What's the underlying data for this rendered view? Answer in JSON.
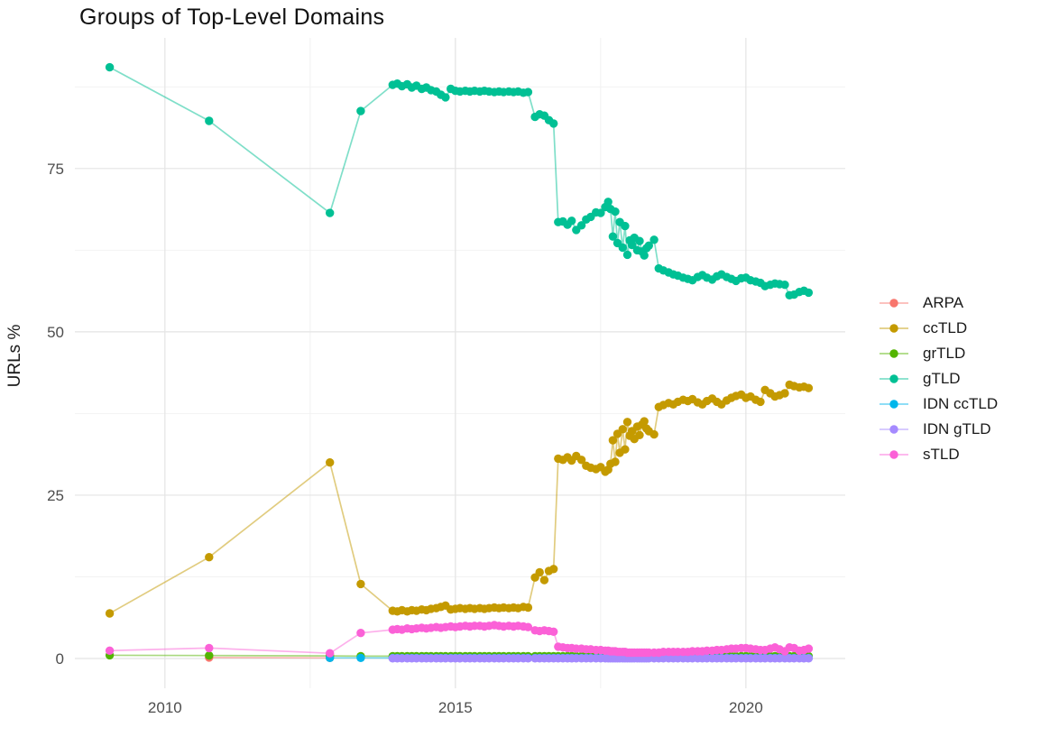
{
  "chart": {
    "title": "Groups of Top-Level Domains"
  },
  "chart_data": {
    "type": "line",
    "title": "Groups of Top-Level Domains",
    "xlabel": "",
    "ylabel": "URLs %",
    "x_ticks": [
      2010,
      2015,
      2020
    ],
    "y_ticks": [
      0,
      25,
      50,
      75
    ],
    "x_minor_ticks": [
      2012.5,
      2017.5
    ],
    "y_minor_ticks": [
      12.5,
      37.5,
      62.5,
      87.5
    ],
    "xlim": [
      2008.45,
      2021.71
    ],
    "ylim": [
      -4.56,
      95.0
    ],
    "grid": true,
    "legend_position": "right",
    "x_dense": [
      2013.92,
      2014.0,
      2014.08,
      2014.17,
      2014.25,
      2014.33,
      2014.42,
      2014.5,
      2014.58,
      2014.67,
      2014.75,
      2014.83,
      2014.92,
      2015.0,
      2015.08,
      2015.17,
      2015.25,
      2015.33,
      2015.42,
      2015.5,
      2015.58,
      2015.67,
      2015.75,
      2015.83,
      2015.92,
      2016.0,
      2016.08,
      2016.17,
      2016.25,
      2016.37,
      2016.45,
      2016.53,
      2016.61,
      2016.69,
      2016.77,
      2016.85,
      2016.93,
      2017.0,
      2017.08,
      2017.17,
      2017.25,
      2017.33,
      2017.42,
      2017.5,
      2017.58,
      2017.63,
      2017.67,
      2017.71,
      2017.75,
      2017.79,
      2017.83,
      2017.88,
      2017.92,
      2017.96,
      2018.0,
      2018.04,
      2018.08,
      2018.13,
      2018.17,
      2018.21,
      2018.25,
      2018.29,
      2018.33,
      2018.42,
      2018.5,
      2018.58,
      2018.67,
      2018.75,
      2018.83,
      2018.92,
      2019.0,
      2019.08,
      2019.17,
      2019.25,
      2019.33,
      2019.42,
      2019.5,
      2019.58,
      2019.67,
      2019.75,
      2019.83,
      2019.92,
      2020.0,
      2020.08,
      2020.17,
      2020.25,
      2020.33,
      2020.42,
      2020.5,
      2020.58,
      2020.67,
      2020.75,
      2020.83,
      2020.92,
      2021.0,
      2021.08
    ],
    "series": [
      {
        "name": "ARPA",
        "color": "#F8766D",
        "dense": false,
        "x_head": [
          2010.76,
          2012.84
        ],
        "y_head": [
          0.15,
          0.1
        ]
      },
      {
        "name": "ccTLD",
        "color": "#C49A00",
        "dense": true,
        "x_head": [
          2009.05,
          2010.76,
          2012.84,
          2013.37
        ],
        "y_head": [
          6.9,
          15.5,
          30.0,
          11.4
        ],
        "y_dense": [
          7.3,
          7.2,
          7.4,
          7.2,
          7.4,
          7.3,
          7.5,
          7.4,
          7.6,
          7.7,
          7.9,
          8.1,
          7.5,
          7.6,
          7.7,
          7.6,
          7.7,
          7.6,
          7.7,
          7.6,
          7.7,
          7.8,
          7.7,
          7.8,
          7.7,
          7.8,
          7.7,
          7.9,
          7.8,
          12.4,
          13.2,
          12.0,
          13.4,
          13.7,
          30.6,
          30.4,
          30.8,
          30.3,
          31.0,
          30.4,
          29.5,
          29.2,
          29.0,
          29.3,
          28.6,
          28.9,
          29.8,
          33.4,
          30.1,
          34.4,
          31.5,
          35.1,
          32.0,
          36.2,
          34.1,
          34.8,
          33.6,
          35.5,
          34.2,
          35.8,
          36.3,
          35.2,
          34.8,
          34.3,
          38.5,
          38.8,
          39.1,
          38.9,
          39.3,
          39.6,
          39.4,
          39.7,
          39.2,
          38.9,
          39.4,
          39.8,
          39.3,
          38.9,
          39.5,
          39.9,
          40.2,
          40.4,
          39.9,
          40.1,
          39.6,
          39.3,
          41.1,
          40.6,
          40.1,
          40.3,
          40.6,
          41.9,
          41.7,
          41.5,
          41.6,
          41.4
        ]
      },
      {
        "name": "grTLD",
        "color": "#53B400",
        "dense": true,
        "x_head": [
          2009.05,
          2010.76,
          2012.84,
          2013.37
        ],
        "y_head": [
          0.5,
          0.45,
          0.4,
          0.35
        ],
        "y_dense_fill": 0.35
      },
      {
        "name": "gTLD",
        "color": "#00C094",
        "dense": true,
        "x_head": [
          2009.05,
          2010.76,
          2012.84,
          2013.37
        ],
        "y_head": [
          90.5,
          82.3,
          68.2,
          83.8
        ],
        "y_dense": [
          87.8,
          88.0,
          87.6,
          87.9,
          87.4,
          87.7,
          87.2,
          87.4,
          87.0,
          86.8,
          86.3,
          85.9,
          87.2,
          86.9,
          86.8,
          86.9,
          86.8,
          86.9,
          86.8,
          86.9,
          86.8,
          86.7,
          86.8,
          86.7,
          86.8,
          86.7,
          86.8,
          86.6,
          86.7,
          82.9,
          83.3,
          83.1,
          82.4,
          81.9,
          66.8,
          66.9,
          66.4,
          67.0,
          65.6,
          66.3,
          67.2,
          67.6,
          68.3,
          68.2,
          69.1,
          69.9,
          68.8,
          64.6,
          68.4,
          63.6,
          66.8,
          62.9,
          66.2,
          61.8,
          64.0,
          63.3,
          64.4,
          62.5,
          63.9,
          62.3,
          61.7,
          62.8,
          63.2,
          64.1,
          59.7,
          59.4,
          59.1,
          58.8,
          58.6,
          58.3,
          58.1,
          57.9,
          58.4,
          58.7,
          58.3,
          58.0,
          58.5,
          58.8,
          58.4,
          58.1,
          57.8,
          58.2,
          58.3,
          57.9,
          57.7,
          57.5,
          57.0,
          57.2,
          57.4,
          57.3,
          57.2,
          55.6,
          55.7,
          56.1,
          56.3,
          56.0
        ]
      },
      {
        "name": "IDN ccTLD",
        "color": "#00B6EB",
        "dense": true,
        "x_head": [
          2012.84,
          2013.37
        ],
        "y_head": [
          0.1,
          0.1
        ],
        "y_dense_fill": 0.08
      },
      {
        "name": "IDN gTLD",
        "color": "#A58AFF",
        "dense": true,
        "x_head": [],
        "y_head": [],
        "y_dense_fill": 0.02
      },
      {
        "name": "sTLD",
        "color": "#FB61D7",
        "dense": true,
        "x_head": [
          2009.05,
          2010.76,
          2012.84,
          2013.37
        ],
        "y_head": [
          1.2,
          1.6,
          0.8,
          3.9
        ],
        "y_dense": [
          4.4,
          4.5,
          4.4,
          4.6,
          4.5,
          4.6,
          4.7,
          4.6,
          4.7,
          4.8,
          4.7,
          4.8,
          4.9,
          4.8,
          4.9,
          5.0,
          4.9,
          5.0,
          5.0,
          4.9,
          5.0,
          5.1,
          5.0,
          4.9,
          5.0,
          4.9,
          5.0,
          4.9,
          4.8,
          4.3,
          4.2,
          4.3,
          4.2,
          4.1,
          1.8,
          1.7,
          1.6,
          1.6,
          1.5,
          1.5,
          1.4,
          1.4,
          1.3,
          1.3,
          1.2,
          1.2,
          1.1,
          1.1,
          1.1,
          1.0,
          1.0,
          1.0,
          1.0,
          0.9,
          0.9,
          0.9,
          0.9,
          0.9,
          0.9,
          0.9,
          0.9,
          0.9,
          0.9,
          0.9,
          0.9,
          1.0,
          1.0,
          1.0,
          1.0,
          1.0,
          1.0,
          1.1,
          1.1,
          1.1,
          1.2,
          1.2,
          1.3,
          1.3,
          1.4,
          1.5,
          1.5,
          1.6,
          1.6,
          1.5,
          1.4,
          1.3,
          1.3,
          1.5,
          1.7,
          1.4,
          1.1,
          1.7,
          1.6,
          1.2,
          1.3,
          1.5
        ]
      }
    ]
  }
}
